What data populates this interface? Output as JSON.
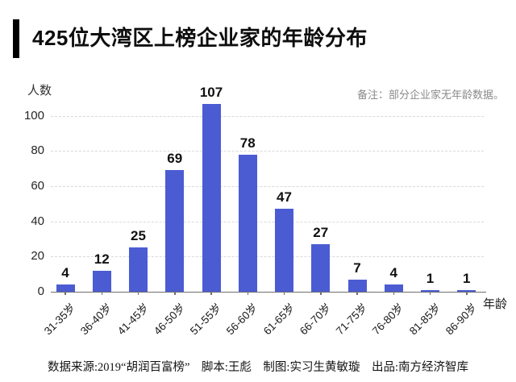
{
  "header": {
    "title": "425位大湾区上榜企业家的年龄分布"
  },
  "note": {
    "text": "备注：部分企业家无年龄数据。"
  },
  "chart_data": {
    "type": "bar",
    "title": "425位大湾区上榜企业家的年龄分布",
    "categories": [
      "31-35岁",
      "36-40岁",
      "41-45岁",
      "46-50岁",
      "51-55岁",
      "56-60岁",
      "61-65岁",
      "66-70岁",
      "71-75岁",
      "76-80岁",
      "81-85岁",
      "86-90岁"
    ],
    "values": [
      4,
      12,
      25,
      69,
      107,
      78,
      47,
      27,
      7,
      4,
      1,
      1
    ],
    "xlabel": "年龄",
    "ylabel": "人数",
    "ylim": [
      0,
      110
    ],
    "yticks": [
      0,
      20,
      40,
      60,
      80,
      100
    ],
    "grid": "horizontal-dashed",
    "legend": "none",
    "bar_color": "#4b5cd2"
  },
  "footer": {
    "credits": "数据来源:2019“胡润百富榜”　脚本:王彪　制图:实习生黄敏璇　出品:南方经济智库"
  }
}
